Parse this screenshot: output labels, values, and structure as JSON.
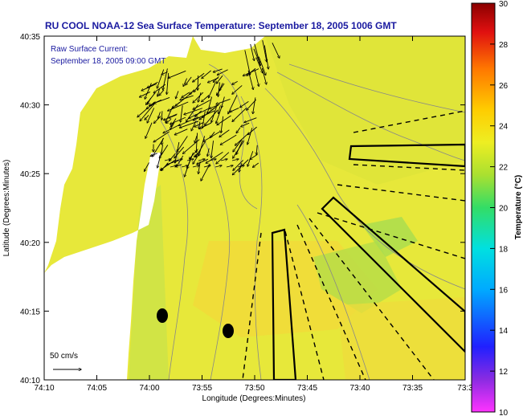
{
  "title": "RU COOL  NOAA-12  Sea Surface Temperature:  September 18, 2005 1006 GMT",
  "inset": {
    "line1": "Raw Surface Current:",
    "line2": "September 18, 2005 09:00 GMT"
  },
  "scale_label": "50 cm/s",
  "axes": {
    "xlabel": "Longitude (Degrees:Minutes)",
    "ylabel": "Latitude (Degrees:Minutes)",
    "xticks": [
      "74:10",
      "74:05",
      "74:00",
      "73:55",
      "73:50",
      "73:45",
      "73:40",
      "73:35",
      "73:3"
    ],
    "yticks": [
      "40:35",
      "40:30",
      "40:25",
      "40:20",
      "40:15",
      "40:10"
    ]
  },
  "colorbar": {
    "label": "Temperature (°C)",
    "ticks": [
      "30",
      "28",
      "26",
      "24",
      "22",
      "20",
      "18",
      "16",
      "14",
      "12",
      "10"
    ],
    "range": [
      10,
      30
    ]
  },
  "colors": {
    "title": "#1a1aa0",
    "land": "#ffffff",
    "sst_background": "#e7e83a",
    "sst_warm": "#f4dc3a",
    "sst_cool": "#bfe03a"
  }
}
